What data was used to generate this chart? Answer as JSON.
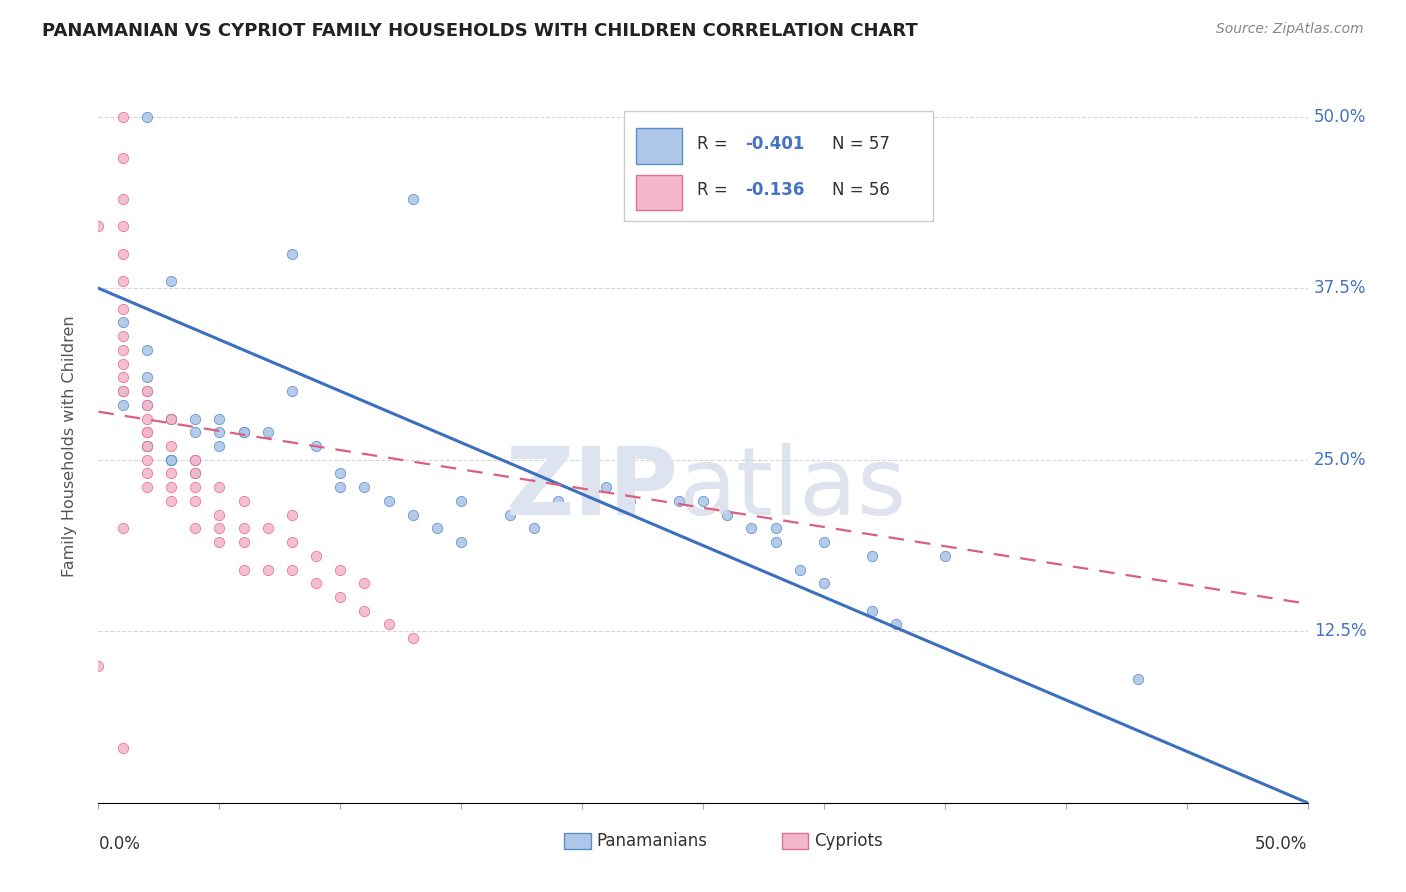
{
  "title": "PANAMANIAN VS CYPRIOT FAMILY HOUSEHOLDS WITH CHILDREN CORRELATION CHART",
  "source": "Source: ZipAtlas.com",
  "ylabel": "Family Households with Children",
  "xlim": [
    0.0,
    0.5
  ],
  "ylim": [
    0.0,
    0.52
  ],
  "panama_color": "#aec6e8",
  "panama_edge_color": "#5b8fc9",
  "panama_line_color": "#3c6fbe",
  "cypriot_color": "#f5b8cb",
  "cypriot_edge_color": "#e07090",
  "cypriot_line_color": "#d9607e",
  "background_color": "#ffffff",
  "grid_color": "#cccccc",
  "title_color": "#222222",
  "axis_label_color": "#555555",
  "right_ytick_color": "#4472c4",
  "legend_text_color_dark": "#333333",
  "legend_text_color_blue": "#4472c4",
  "panama_scatter_x": [
    0.02,
    0.13,
    0.08,
    0.03,
    0.01,
    0.02,
    0.02,
    0.01,
    0.02,
    0.01,
    0.02,
    0.03,
    0.03,
    0.04,
    0.04,
    0.05,
    0.06,
    0.02,
    0.02,
    0.03,
    0.04,
    0.05,
    0.05,
    0.03,
    0.03,
    0.04,
    0.06,
    0.07,
    0.08,
    0.09,
    0.1,
    0.1,
    0.11,
    0.12,
    0.13,
    0.14,
    0.15,
    0.15,
    0.17,
    0.18,
    0.19,
    0.21,
    0.22,
    0.24,
    0.26,
    0.28,
    0.3,
    0.32,
    0.35,
    0.25,
    0.27,
    0.28,
    0.29,
    0.3,
    0.32,
    0.33,
    0.43
  ],
  "panama_scatter_y": [
    0.5,
    0.44,
    0.4,
    0.38,
    0.35,
    0.33,
    0.31,
    0.3,
    0.3,
    0.29,
    0.29,
    0.28,
    0.28,
    0.28,
    0.27,
    0.28,
    0.27,
    0.26,
    0.26,
    0.25,
    0.25,
    0.27,
    0.26,
    0.25,
    0.25,
    0.24,
    0.27,
    0.27,
    0.3,
    0.26,
    0.24,
    0.23,
    0.23,
    0.22,
    0.21,
    0.2,
    0.19,
    0.22,
    0.21,
    0.2,
    0.22,
    0.23,
    0.22,
    0.22,
    0.21,
    0.2,
    0.19,
    0.18,
    0.18,
    0.22,
    0.2,
    0.19,
    0.17,
    0.16,
    0.14,
    0.13,
    0.09
  ],
  "cypriot_scatter_x": [
    0.01,
    0.01,
    0.01,
    0.01,
    0.01,
    0.01,
    0.01,
    0.01,
    0.01,
    0.01,
    0.02,
    0.02,
    0.02,
    0.02,
    0.02,
    0.02,
    0.02,
    0.02,
    0.02,
    0.03,
    0.03,
    0.03,
    0.03,
    0.03,
    0.04,
    0.04,
    0.04,
    0.04,
    0.04,
    0.05,
    0.05,
    0.05,
    0.05,
    0.06,
    0.06,
    0.06,
    0.06,
    0.07,
    0.07,
    0.08,
    0.08,
    0.08,
    0.09,
    0.09,
    0.1,
    0.1,
    0.11,
    0.11,
    0.12,
    0.13,
    0.0,
    0.0,
    0.01,
    0.01,
    0.01,
    0.01
  ],
  "cypriot_scatter_y": [
    0.47,
    0.44,
    0.42,
    0.4,
    0.38,
    0.36,
    0.34,
    0.32,
    0.31,
    0.3,
    0.3,
    0.29,
    0.28,
    0.27,
    0.27,
    0.26,
    0.25,
    0.24,
    0.23,
    0.28,
    0.26,
    0.24,
    0.23,
    0.22,
    0.25,
    0.24,
    0.23,
    0.22,
    0.2,
    0.23,
    0.21,
    0.2,
    0.19,
    0.22,
    0.2,
    0.19,
    0.17,
    0.2,
    0.17,
    0.21,
    0.19,
    0.17,
    0.18,
    0.16,
    0.17,
    0.15,
    0.16,
    0.14,
    0.13,
    0.12,
    0.42,
    0.1,
    0.5,
    0.33,
    0.2,
    0.04
  ],
  "panama_line_x0": 0.0,
  "panama_line_y0": 0.375,
  "panama_line_x1": 0.5,
  "panama_line_y1": 0.0,
  "cypriot_line_x0": 0.0,
  "cypriot_line_y0": 0.285,
  "cypriot_line_x1": 0.5,
  "cypriot_line_y1": 0.145,
  "legend_R_panama": "R = -0.401",
  "legend_N_panama": "N = 57",
  "legend_R_cypriot": "R = -0.136",
  "legend_N_cypriot": "N = 56",
  "legend_label_panama": "Panamanians",
  "legend_label_cypriot": "Cypriots"
}
